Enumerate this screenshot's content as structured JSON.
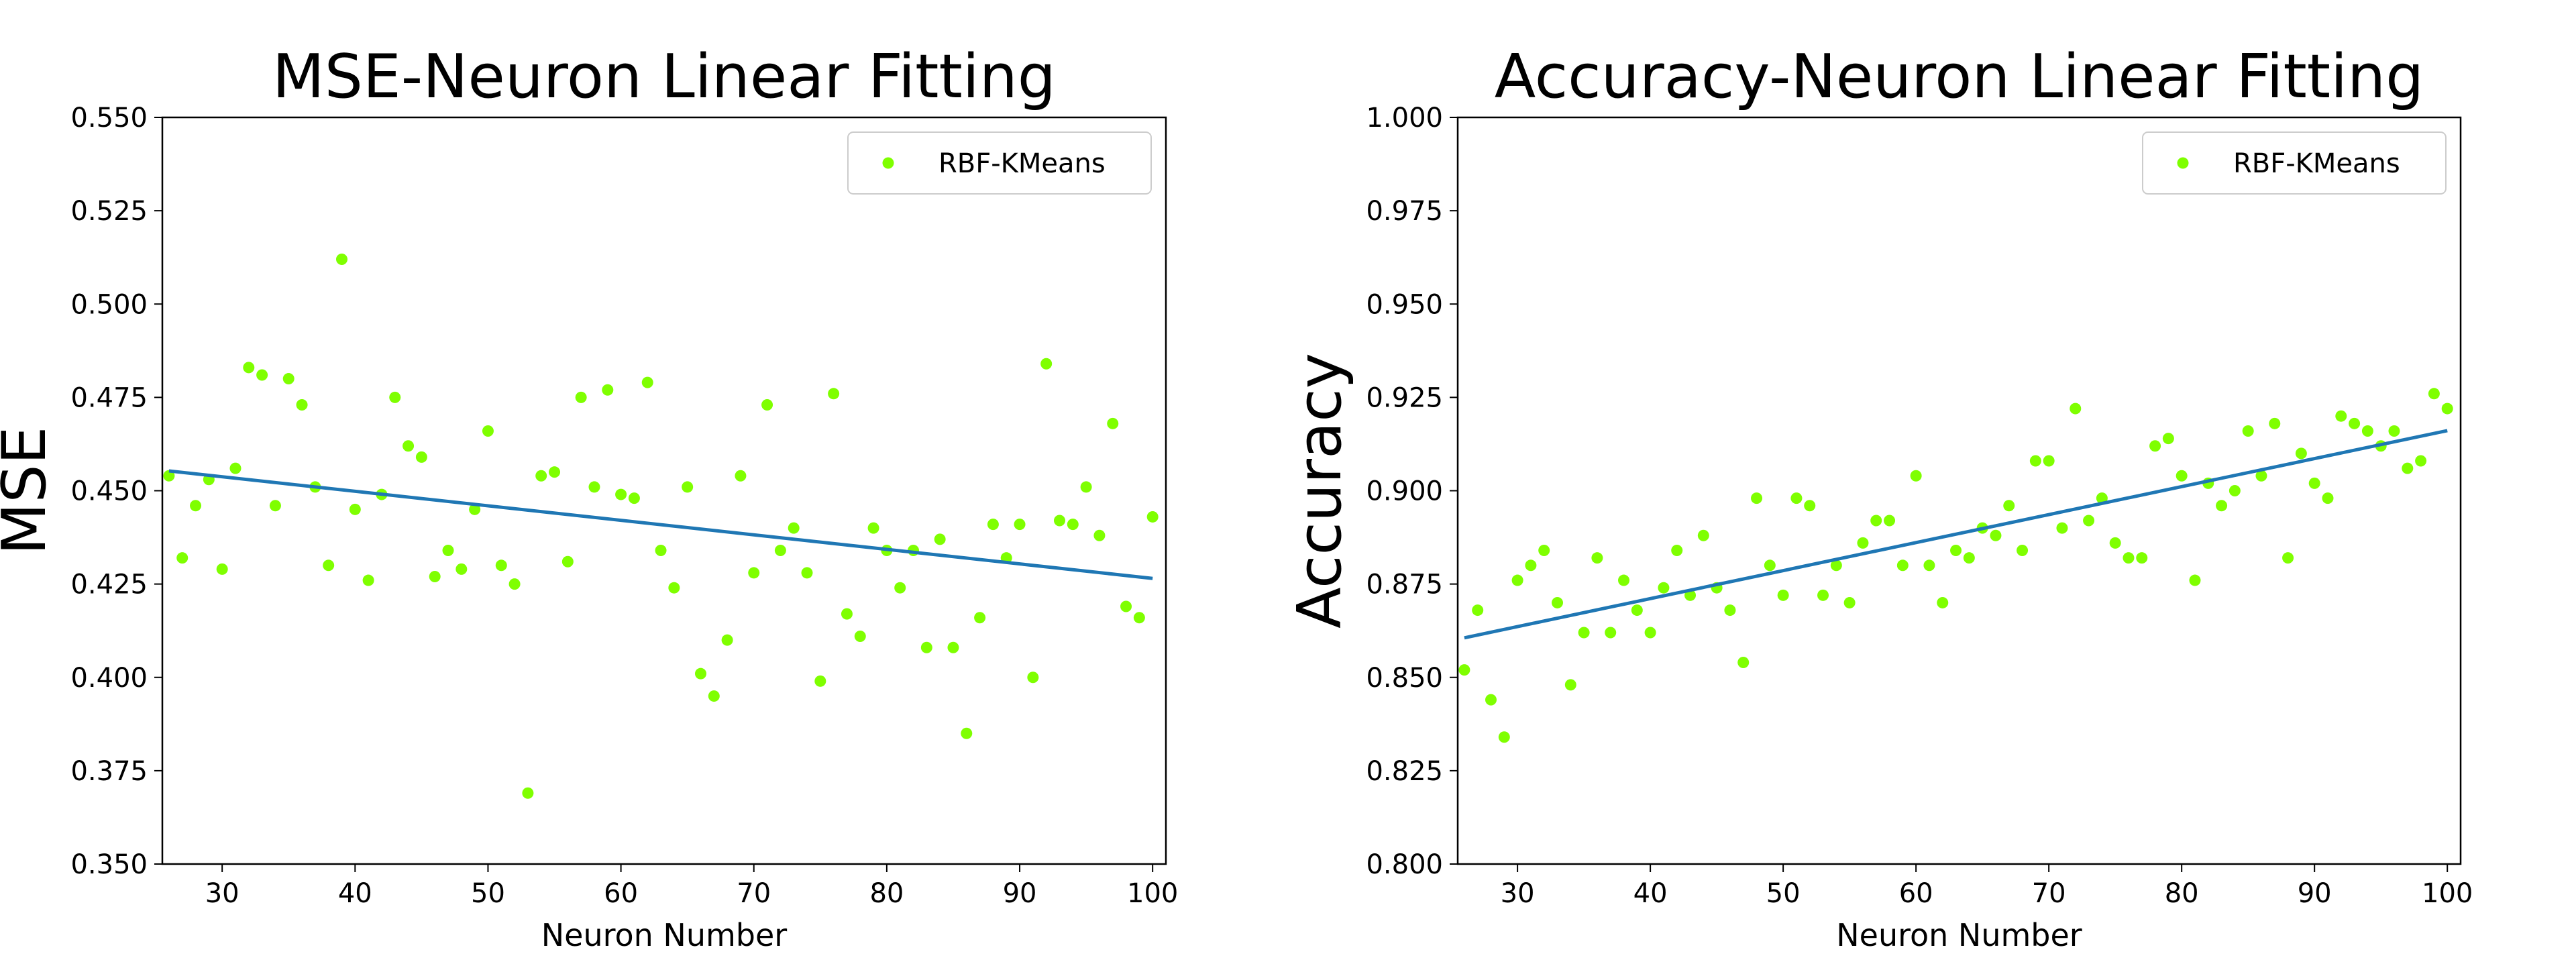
{
  "chart_data": [
    {
      "type": "scatter",
      "title": "MSE-Neuron Linear Fitting",
      "xlabel": "Neuron Number",
      "ylabel": "MSE",
      "xlim": [
        25.5,
        101
      ],
      "ylim": [
        0.35,
        0.55
      ],
      "xticks": [
        30,
        40,
        50,
        60,
        70,
        80,
        90,
        100
      ],
      "xtick_labels": [
        "30",
        "40",
        "50",
        "60",
        "70",
        "80",
        "90",
        "100"
      ],
      "yticks": [
        0.35,
        0.375,
        0.4,
        0.425,
        0.45,
        0.475,
        0.5,
        0.525,
        0.55
      ],
      "ytick_labels": [
        "0.350",
        "0.375",
        "0.400",
        "0.425",
        "0.450",
        "0.475",
        "0.500",
        "0.525",
        "0.550"
      ],
      "grid": false,
      "legend_position": "top-right",
      "series": [
        {
          "name": "RBF-KMeans",
          "type": "scatter",
          "color": "#7fff00",
          "x": [
            26,
            27,
            28,
            29,
            30,
            31,
            32,
            33,
            34,
            35,
            36,
            37,
            38,
            39,
            40,
            41,
            42,
            43,
            44,
            45,
            46,
            47,
            48,
            49,
            50,
            51,
            52,
            53,
            54,
            55,
            56,
            57,
            58,
            59,
            60,
            61,
            62,
            63,
            64,
            65,
            66,
            67,
            68,
            69,
            70,
            71,
            72,
            73,
            74,
            75,
            76,
            77,
            78,
            79,
            80,
            81,
            82,
            83,
            84,
            85,
            86,
            87,
            88,
            89,
            90,
            91,
            92,
            93,
            94,
            95,
            96,
            97,
            98,
            99,
            100
          ],
          "y": [
            0.454,
            0.432,
            0.446,
            0.453,
            0.429,
            0.456,
            0.483,
            0.481,
            0.446,
            0.48,
            0.473,
            0.451,
            0.43,
            0.512,
            0.445,
            0.426,
            0.449,
            0.475,
            0.462,
            0.459,
            0.427,
            0.434,
            0.429,
            0.445,
            0.466,
            0.43,
            0.425,
            0.369,
            0.454,
            0.455,
            0.431,
            0.475,
            0.451,
            0.477,
            0.449,
            0.448,
            0.479,
            0.434,
            0.424,
            0.451,
            0.401,
            0.395,
            0.41,
            0.454,
            0.428,
            0.473,
            0.434,
            0.44,
            0.428,
            0.399,
            0.476,
            0.417,
            0.411,
            0.44,
            0.434,
            0.424,
            0.434,
            0.408,
            0.437,
            0.408,
            0.385,
            0.416,
            0.441,
            0.432,
            0.441,
            0.4,
            0.484,
            0.442,
            0.441,
            0.451,
            0.438,
            0.468,
            0.419,
            0.416,
            0.443
          ]
        },
        {
          "name": "",
          "type": "line",
          "color": "#1f77b4",
          "x": [
            26,
            100
          ],
          "y": [
            0.4553,
            0.4265
          ]
        }
      ]
    },
    {
      "type": "scatter",
      "title": "Accuracy-Neuron Linear Fitting",
      "xlabel": "Neuron Number",
      "ylabel": "Accuracy",
      "xlim": [
        25.5,
        101
      ],
      "ylim": [
        0.8,
        1.0
      ],
      "xticks": [
        30,
        40,
        50,
        60,
        70,
        80,
        90,
        100
      ],
      "xtick_labels": [
        "30",
        "40",
        "50",
        "60",
        "70",
        "80",
        "90",
        "100"
      ],
      "yticks": [
        0.8,
        0.825,
        0.85,
        0.875,
        0.9,
        0.925,
        0.95,
        0.975,
        1.0
      ],
      "ytick_labels": [
        "0.800",
        "0.825",
        "0.850",
        "0.875",
        "0.900",
        "0.925",
        "0.950",
        "0.975",
        "1.000"
      ],
      "grid": false,
      "legend_position": "top-right",
      "series": [
        {
          "name": "RBF-KMeans",
          "type": "scatter",
          "color": "#7fff00",
          "x": [
            26,
            27,
            28,
            29,
            30,
            31,
            32,
            33,
            34,
            35,
            36,
            37,
            38,
            39,
            40,
            41,
            42,
            43,
            44,
            45,
            46,
            47,
            48,
            49,
            50,
            51,
            52,
            53,
            54,
            55,
            56,
            57,
            58,
            59,
            60,
            61,
            62,
            63,
            64,
            65,
            66,
            67,
            68,
            69,
            70,
            71,
            72,
            73,
            74,
            75,
            76,
            77,
            78,
            79,
            80,
            81,
            82,
            83,
            84,
            85,
            86,
            87,
            88,
            89,
            90,
            91,
            92,
            93,
            94,
            95,
            96,
            97,
            98,
            99,
            100
          ],
          "y": [
            0.852,
            0.868,
            0.844,
            0.834,
            0.876,
            0.88,
            0.884,
            0.87,
            0.848,
            0.862,
            0.882,
            0.862,
            0.876,
            0.868,
            0.862,
            0.874,
            0.884,
            0.872,
            0.888,
            0.874,
            0.868,
            0.854,
            0.898,
            0.88,
            0.872,
            0.898,
            0.896,
            0.872,
            0.88,
            0.87,
            0.886,
            0.892,
            0.892,
            0.88,
            0.904,
            0.88,
            0.87,
            0.884,
            0.882,
            0.89,
            0.888,
            0.896,
            0.884,
            0.908,
            0.908,
            0.89,
            0.922,
            0.892,
            0.898,
            0.886,
            0.882,
            0.882,
            0.912,
            0.914,
            0.904,
            0.876,
            0.902,
            0.896,
            0.9,
            0.916,
            0.904,
            0.918,
            0.882,
            0.91,
            0.902,
            0.898,
            0.92,
            0.918,
            0.916,
            0.912,
            0.916,
            0.906,
            0.908,
            0.926,
            0.922
          ]
        },
        {
          "name": "",
          "type": "line",
          "color": "#1f77b4",
          "x": [
            26,
            100
          ],
          "y": [
            0.8606,
            0.9161
          ]
        }
      ]
    }
  ]
}
